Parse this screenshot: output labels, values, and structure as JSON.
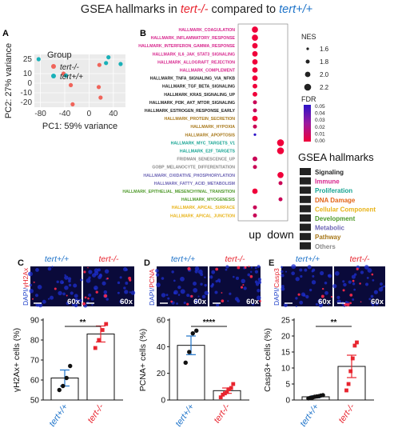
{
  "title": {
    "prefix": "GSEA hallmarks in ",
    "mut": "tert-/-",
    "mid": " compared to ",
    "wt": "tert+/+"
  },
  "colors": {
    "mut": "#e8252f",
    "wt": "#1e73c9",
    "pca_mut": "#f0645a",
    "pca_wt": "#1ab0b8",
    "fdr_high": "#2b12c8",
    "fdr_low": "#f0003a"
  },
  "panels": {
    "A": {
      "label": "A",
      "legend_title": "Group",
      "legend_items": [
        "tert-/-",
        "tert+/+"
      ],
      "xlabel": "PC1: 59% variance",
      "ylabel": "PC2: 27% variance",
      "xticks": [
        "-80",
        "-40",
        "0",
        "40"
      ],
      "yticks": [
        "-20",
        "-10",
        "0",
        "10",
        "25"
      ]
    },
    "B": {
      "label": "B",
      "columns": [
        "up",
        "down"
      ],
      "nes_title": "NES",
      "nes_values": [
        "1.6",
        "1.8",
        "2.0",
        "2.2"
      ],
      "fdr_title": "FDR",
      "fdr_ticks": [
        "0.05",
        "0.04",
        "0.03",
        "0.02",
        "0.01",
        "0.00"
      ],
      "cat_title": "GSEA hallmarks",
      "categories": [
        {
          "name": "Signaling",
          "color": "#222222"
        },
        {
          "name": "Immune",
          "color": "#d7268d"
        },
        {
          "name": "Proliferation",
          "color": "#17a493"
        },
        {
          "name": "DNA Damage",
          "color": "#e3661b"
        },
        {
          "name": "Cellular Component",
          "color": "#e8b318"
        },
        {
          "name": "Development",
          "color": "#4f9a2b"
        },
        {
          "name": "Metabolic",
          "color": "#6f67b6"
        },
        {
          "name": "Pathway",
          "color": "#a8781a"
        },
        {
          "name": "Others",
          "color": "#8a8a8a"
        }
      ]
    },
    "C": {
      "label": "C",
      "stain": [
        "DAPI/",
        "γH2Ax"
      ],
      "stain_color": "#e8252f",
      "mag": "60x",
      "ylabel": "γH2Ax+ cells (%)",
      "yticks": [
        "50",
        "60",
        "70",
        "80",
        "90"
      ],
      "sig": "**"
    },
    "D": {
      "label": "D",
      "stain": [
        "DAPI/",
        "PCNA"
      ],
      "stain_color": "#e8252f",
      "mag": "60x",
      "ylabel": "PCNA+ cells (%)",
      "yticks": [
        "0",
        "20",
        "40",
        "60"
      ],
      "sig": "****"
    },
    "E": {
      "label": "E",
      "stain": [
        "DAPI/",
        "Casp3"
      ],
      "stain_color": "#e8252f",
      "mag": "60x",
      "ylabel": "Casp3+ cells (%)",
      "yticks": [
        "0",
        "5",
        "10",
        "15",
        "20",
        "25"
      ],
      "sig": "**"
    }
  },
  "chart_data": [
    {
      "type": "scatter",
      "panel": "A",
      "title": "",
      "xlabel": "PC1: 59% variance",
      "ylabel": "PC2: 27% variance",
      "xlim": [
        -90,
        60
      ],
      "ylim": [
        -25,
        30
      ],
      "legend_position": "top-right",
      "series": [
        {
          "name": "tert-/-",
          "points": [
            [
              -42,
              10
            ],
            [
              -30,
              -2
            ],
            [
              -27,
              -22
            ],
            [
              17,
              19
            ],
            [
              16,
              -4
            ],
            [
              19,
              -15
            ]
          ]
        },
        {
          "name": "tert+/+",
          "points": [
            [
              -83,
              25
            ],
            [
              -38,
              8
            ],
            [
              28,
              21
            ],
            [
              32,
              27
            ],
            [
              52,
              20
            ]
          ]
        }
      ]
    },
    {
      "type": "scatter",
      "panel": "B",
      "title": "",
      "x_categories": [
        "up",
        "down"
      ],
      "legend_position": "right",
      "size_encoding": "NES",
      "color_encoding": "FDR",
      "rows": [
        {
          "label": "HALLMARK_COAGULATION",
          "category": "Immune",
          "col": "up",
          "nes": 2.1,
          "fdr": 0.0
        },
        {
          "label": "HALLMARK_INFLAMMATORY_RESPONSE",
          "category": "Immune",
          "col": "up",
          "nes": 2.1,
          "fdr": 0.0
        },
        {
          "label": "HALLMARK_INTERFERON_GAMMA_RESPONSE",
          "category": "Immune",
          "col": "up",
          "nes": 2.0,
          "fdr": 0.0
        },
        {
          "label": "HALLMARK_IL6_JAK_STAT3_SIGNALING",
          "category": "Immune",
          "col": "up",
          "nes": 2.0,
          "fdr": 0.0
        },
        {
          "label": "HALLMARK_ALLOGRAFT_REJECTION",
          "category": "Immune",
          "col": "up",
          "nes": 2.0,
          "fdr": 0.0
        },
        {
          "label": "HALLMARK_COMPLEMENT",
          "category": "Immune",
          "col": "up",
          "nes": 2.0,
          "fdr": 0.0
        },
        {
          "label": "HALLMARK_TNFA_SIGNALING_VIA_NFKB",
          "category": "Signaling",
          "col": "up",
          "nes": 2.0,
          "fdr": 0.0
        },
        {
          "label": "HALLMARK_TGF_BETA_SIGNALING",
          "category": "Signaling",
          "col": "up",
          "nes": 1.9,
          "fdr": 0.0
        },
        {
          "label": "HALLMARK_KRAS_SIGNALING_UP",
          "category": "Signaling",
          "col": "up",
          "nes": 1.9,
          "fdr": 0.0
        },
        {
          "label": "HALLMARK_PI3K_AKT_MTOR_SIGNALING",
          "category": "Signaling",
          "col": "up",
          "nes": 1.8,
          "fdr": 0.01
        },
        {
          "label": "HALLMARK_ESTROGEN_RESPONSE_EARLY",
          "category": "Signaling",
          "col": "up",
          "nes": 1.8,
          "fdr": 0.01
        },
        {
          "label": "HALLMARK_PROTEIN_SECRETION",
          "category": "Pathway",
          "col": "up",
          "nes": 2.0,
          "fdr": 0.0
        },
        {
          "label": "HALLMARK_HYPOXIA",
          "category": "Pathway",
          "col": "up",
          "nes": 1.8,
          "fdr": 0.01
        },
        {
          "label": "HALLMARK_APOPTOSIS",
          "category": "Pathway",
          "col": "up",
          "nes": 1.6,
          "fdr": 0.05
        },
        {
          "label": "HALLMARK_MYC_TARGETS_V1",
          "category": "Proliferation",
          "col": "down",
          "nes": 2.2,
          "fdr": 0.0
        },
        {
          "label": "HALLMARK_E2F_TARGETS",
          "category": "Proliferation",
          "col": "down",
          "nes": 2.2,
          "fdr": 0.0
        },
        {
          "label": "FRIDMAN_SENESCENCE_UP",
          "category": "Others",
          "col": "up",
          "nes": 1.9,
          "fdr": 0.01
        },
        {
          "label": "GOBP_MELANOCYTE_DIFFERENTIATION",
          "category": "Others",
          "col": "up",
          "nes": 1.8,
          "fdr": 0.01
        },
        {
          "label": "HALLMARK_OXIDATIVE_PHOSPHORYLATION",
          "category": "Metabolic",
          "col": "down",
          "nes": 2.1,
          "fdr": 0.0
        },
        {
          "label": "HALLMARK_FATTY_ACID_METABOLISM",
          "category": "Metabolic",
          "col": "down",
          "nes": 1.8,
          "fdr": 0.01
        },
        {
          "label": "HALLMARK_EPITHELIAL_MESENCHYMAL_TRANSITION",
          "category": "Development",
          "col": "up",
          "nes": 2.0,
          "fdr": 0.0
        },
        {
          "label": "HALLMARK_MYOGENESIS",
          "category": "Development",
          "col": "down",
          "nes": 1.8,
          "fdr": 0.01
        },
        {
          "label": "HALLMARK_APICAL_SURFACE",
          "category": "Cellular Component",
          "col": "up",
          "nes": 1.8,
          "fdr": 0.01
        },
        {
          "label": "HALLMARK_APICAL_JUNCTION",
          "category": "Cellular Component",
          "col": "up",
          "nes": 1.8,
          "fdr": 0.01
        }
      ]
    },
    {
      "type": "bar",
      "panel": "C",
      "title": "",
      "categories": [
        "tert+/+",
        "tert-/-"
      ],
      "values": [
        61,
        83
      ],
      "errors": [
        4,
        4
      ],
      "points": [
        [
          55,
          57,
          61,
          67
        ],
        [
          76,
          80,
          85,
          88
        ]
      ],
      "ylabel": "γH2Ax+ cells (%)",
      "ylim": [
        50,
        90
      ]
    },
    {
      "type": "bar",
      "panel": "D",
      "title": "",
      "categories": [
        "tert+/+",
        "tert-/-"
      ],
      "values": [
        41,
        7
      ],
      "errors": [
        7,
        2
      ],
      "points": [
        [
          28,
          36,
          50,
          52
        ],
        [
          2,
          4,
          5,
          6,
          8,
          9,
          12
        ]
      ],
      "ylabel": "PCNA+ cells (%)",
      "ylim": [
        0,
        60
      ]
    },
    {
      "type": "bar",
      "panel": "E",
      "title": "",
      "categories": [
        "tert+/+",
        "tert-/-"
      ],
      "values": [
        1,
        10.5
      ],
      "errors": [
        0.3,
        3.5
      ],
      "points": [
        [
          0.5,
          0.7,
          0.8,
          1.0,
          1.1,
          1.2,
          1.4,
          1.5
        ],
        [
          3,
          5,
          9,
          13,
          17,
          18
        ]
      ],
      "ylabel": "Casp3+ cells (%)",
      "ylim": [
        0,
        25
      ]
    }
  ]
}
